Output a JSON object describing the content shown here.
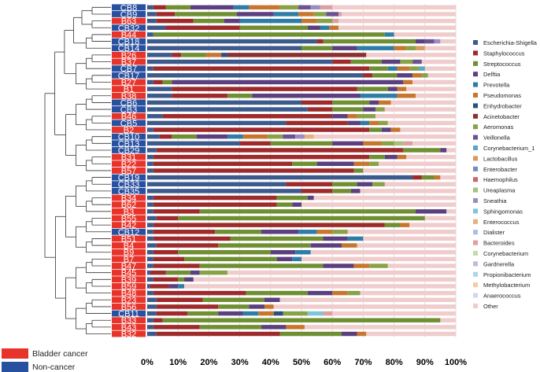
{
  "chart_data": {
    "type": "bar",
    "orientation": "horizontal",
    "stacked": true,
    "xlim": [
      0,
      100
    ],
    "x_ticks": [
      "0%",
      "10%",
      "20%",
      "30%",
      "40%",
      "50%",
      "60%",
      "70%",
      "80%",
      "90%",
      "100%"
    ],
    "grid": true,
    "legend_position": "right",
    "taxa": [
      "Escherichia-Shigella",
      "Staphylococcus",
      "Streptococcus",
      "Delftia",
      "Prevotella",
      "Pseudomonas",
      "Enhydrobacter",
      "Acinetobacter",
      "Aeromonas",
      "Veillonella",
      "Corynebacterium_1",
      "Lactobacillus",
      "Enterobacter",
      "Haemophilus",
      "Ureaplasma",
      "Sneathia",
      "Sphingomonas",
      "Enterococcus",
      "Dialister",
      "Bacteroides",
      "Corynebacterium",
      "Gardnerella",
      "Propionibacterium",
      "Methylobacterium",
      "Anaerococcus",
      "Other"
    ],
    "colors": [
      "#3d5a8c",
      "#9e2a2b",
      "#6f8f32",
      "#5b3f7e",
      "#2e7da6",
      "#c8762d",
      "#2b4f80",
      "#8c2f2f",
      "#88a248",
      "#6a5390",
      "#5aa6c6",
      "#d89a5c",
      "#6f8fc4",
      "#c46a6a",
      "#a7c178",
      "#9f8cbf",
      "#7fc4da",
      "#e5b27f",
      "#a9c0e4",
      "#dba0a0",
      "#c7dba8",
      "#c4b8db",
      "#aad7e6",
      "#f0cfa8",
      "#d0d8ea",
      "#f0cccc"
    ],
    "groups": [
      {
        "name": "Bladder cancer",
        "color": "#e8332a"
      },
      {
        "name": "Non-cancer",
        "color": "#2850a0"
      }
    ],
    "samples": [
      {
        "label": "CB8",
        "group": 1,
        "values": {
          "Escherichia-Shigella": 2,
          "Staphylococcus": 4,
          "Streptococcus": 8,
          "Delftia": 14,
          "Prevotella": 5,
          "Pseudomonas": 10,
          "Aeromonas": 6,
          "Veillonella": 4,
          "Sneathia": 3,
          "Bacteroides": 4,
          "Other": 40
        }
      },
      {
        "label": "CB9",
        "group": 1,
        "values": {
          "Escherichia-Shigella": 3,
          "Staphylococcus": 6,
          "Streptococcus": 20,
          "Delftia": 12,
          "Prevotella": 8,
          "Pseudomonas": 5,
          "Aeromonas": 4,
          "Veillonella": 4,
          "Bacteroides": 1,
          "Other": 37
        }
      },
      {
        "label": "B63",
        "group": 0,
        "values": {
          "Escherichia-Shigella": 3,
          "Staphylococcus": 12,
          "Streptococcus": 10,
          "Delftia": 5,
          "Prevotella": 20,
          "Pseudomonas": 5,
          "Aeromonas": 5,
          "Bacteroides": 2,
          "Other": 38
        }
      },
      {
        "label": "CB32",
        "group": 1,
        "values": {
          "Escherichia-Shigella": 6,
          "Staphylococcus": 24,
          "Streptococcus": 22,
          "Delftia": 4,
          "Prevotella": 3,
          "Pseudomonas": 3,
          "Other": 38
        }
      },
      {
        "label": "B44",
        "group": 0,
        "values": {
          "Escherichia-Shigella": 2,
          "Prevotella": 3,
          "Streptococcus": 75,
          "Other": 20
        }
      },
      {
        "label": "CB18",
        "group": 1,
        "values": {
          "Escherichia-Shigella": 55,
          "Staphylococcus": 2,
          "Streptococcus": 30,
          "Delftia": 3,
          "Veillonella": 3,
          "Sneathia": 2,
          "Other": 5
        }
      },
      {
        "label": "CB14",
        "group": 1,
        "values": {
          "Escherichia-Shigella": 50,
          "Prevotella": 12,
          "Streptococcus": 10,
          "Delftia": 8,
          "Pseudomonas": 4,
          "Lactobacillus": 3,
          "Aeromonas": 3,
          "Other": 10
        }
      },
      {
        "label": "B26",
        "group": 0,
        "values": {
          "Escherichia-Shigella": 8,
          "Staphylococcus": 3,
          "Enhydrobacter": 2,
          "Acinetobacter": 45,
          "Streptococcus": 8,
          "Pseudomonas": 5,
          "Other": 29
        }
      },
      {
        "label": "B37",
        "group": 0,
        "values": {
          "Escherichia-Shigella": 60,
          "Staphylococcus": 6,
          "Streptococcus": 10,
          "Delftia": 6,
          "Aeromonas": 4,
          "Veillonella": 3,
          "Other": 11
        }
      },
      {
        "label": "CB7",
        "group": 1,
        "values": {
          "Escherichia-Shigella": 2,
          "Staphylococcus": 70,
          "Streptococcus": 6,
          "Prevotella": 3,
          "Pseudomonas": 4,
          "Aeromonas": 3,
          "Corynebacterium_1": 2,
          "Other": 10
        }
      },
      {
        "label": "CB17",
        "group": 1,
        "values": {
          "Escherichia-Shigella": 70,
          "Staphylococcus": 3,
          "Streptococcus": 8,
          "Delftia": 5,
          "Pseudomonas": 3,
          "Aeromonas": 2,
          "Other": 9
        }
      },
      {
        "label": "B27",
        "group": 0,
        "values": {
          "Escherichia-Shigella": 2,
          "Staphylococcus": 3,
          "Streptococcus": 3,
          "Delftia": 75,
          "Pseudomonas": 3,
          "Other": 14
        }
      },
      {
        "label": "B1",
        "group": 0,
        "values": {
          "Escherichia-Shigella": 8,
          "Staphylococcus": 60,
          "Streptococcus": 10,
          "Delftia": 3,
          "Pseudomonas": 3,
          "Other": 16
        }
      },
      {
        "label": "B38",
        "group": 0,
        "values": {
          "Escherichia-Shigella": 8,
          "Staphylococcus": 18,
          "Prevotella": 12,
          "Delftia": 35,
          "Streptococcus": 8,
          "Pseudomonas": 6,
          "Other": 13
        }
      },
      {
        "label": "CB6",
        "group": 1,
        "values": {
          "Escherichia-Shigella": 50,
          "Staphylococcus": 10,
          "Streptococcus": 12,
          "Delftia": 3,
          "Pseudomonas": 4,
          "Other": 21
        }
      },
      {
        "label": "CB3",
        "group": 1,
        "values": {
          "Escherichia-Shigella": 52,
          "Staphylococcus": 8,
          "Streptococcus": 10,
          "Delftia": 4,
          "Aeromonas": 3,
          "Other": 23
        }
      },
      {
        "label": "B46",
        "group": 0,
        "values": {
          "Escherichia-Shigella": 5,
          "Staphylococcus": 55,
          "Delftia": 5,
          "Aeromonas": 6,
          "Pseudomonas": 3,
          "Other": 26
        }
      },
      {
        "label": "CB5",
        "group": 1,
        "values": {
          "Escherichia-Shigella": 45,
          "Prevotella": 3,
          "Pseudomonas": 3,
          "Staphylococcus": 20,
          "Delftia": 4,
          "Aeromonas": 3,
          "Other": 22
        }
      },
      {
        "label": "B2",
        "group": 0,
        "values": {
          "Escherichia-Shigella": 2,
          "Staphylococcus": 70,
          "Streptococcus": 4,
          "Delftia": 3,
          "Pseudomonas": 3,
          "Other": 18
        }
      },
      {
        "label": "CB10",
        "group": 1,
        "values": {
          "Escherichia-Shigella": 4,
          "Prevotella": 5,
          "Staphylococcus": 4,
          "Streptococcus": 8,
          "Delftia": 10,
          "Aeromonas": 5,
          "Pseudomonas": 8,
          "Veillonella": 4,
          "Enterococcus": 3,
          "Sneathia": 3,
          "Other": 46
        }
      },
      {
        "label": "CB13",
        "group": 1,
        "values": {
          "Escherichia-Shigella": 30,
          "Staphylococcus": 10,
          "Streptococcus": 20,
          "Delftia": 10,
          "Pseudomonas": 6,
          "Aeromonas": 4,
          "Ureaplasma": 3,
          "Bacteroides": 3,
          "Other": 14
        }
      },
      {
        "label": "CB29",
        "group": 1,
        "values": {
          "Escherichia-Shigella": 3,
          "Staphylococcus": 80,
          "Streptococcus": 12,
          "Delftia": 2,
          "Other": 3
        }
      },
      {
        "label": "B31",
        "group": 0,
        "values": {
          "Escherichia-Shigella": 2,
          "Staphylococcus": 70,
          "Streptococcus": 5,
          "Delftia": 4,
          "Pseudomonas": 3,
          "Other": 16
        }
      },
      {
        "label": "B22",
        "group": 0,
        "values": {
          "Escherichia-Shigella": 2,
          "Staphylococcus": 45,
          "Streptococcus": 8,
          "Delftia": 12,
          "Pseudomonas": 5,
          "Aeromonas": 3,
          "Other": 25
        }
      },
      {
        "label": "B57",
        "group": 0,
        "values": {
          "Escherichia-Shigella": 2,
          "Staphylococcus": 65,
          "Streptococcus": 3,
          "Other": 30
        }
      },
      {
        "label": "CB19",
        "group": 1,
        "values": {
          "Escherichia-Shigella": 86,
          "Staphylococcus": 3,
          "Streptococcus": 4,
          "Pseudomonas": 2,
          "Other": 5
        }
      },
      {
        "label": "CB33",
        "group": 1,
        "values": {
          "Escherichia-Shigella": 45,
          "Staphylococcus": 15,
          "Streptococcus": 8,
          "Delftia": 5,
          "Aeromonas": 4,
          "Other": 23
        }
      },
      {
        "label": "CB35",
        "group": 1,
        "values": {
          "Escherichia-Shigella": 50,
          "Staphylococcus": 10,
          "Streptococcus": 6,
          "Delftia": 3,
          "Other": 31
        }
      },
      {
        "label": "B34",
        "group": 0,
        "values": {
          "Escherichia-Shigella": 2,
          "Staphylococcus": 40,
          "Streptococcus": 10,
          "Delftia": 2,
          "Other": 46
        }
      },
      {
        "label": "B62",
        "group": 0,
        "values": {
          "Escherichia-Shigella": 2,
          "Staphylococcus": 40,
          "Streptococcus": 5,
          "Delftia": 3,
          "Other": 50
        }
      },
      {
        "label": "B3",
        "group": 0,
        "values": {
          "Escherichia-Shigella": 2,
          "Staphylococcus": 15,
          "Streptococcus": 70,
          "Delftia": 10,
          "Other": 3
        }
      },
      {
        "label": "B55",
        "group": 0,
        "values": {
          "Escherichia-Shigella": 3,
          "Staphylococcus": 7,
          "Streptococcus": 80,
          "Other": 10
        }
      },
      {
        "label": "B42",
        "group": 0,
        "values": {
          "Escherichia-Shigella": 2,
          "Staphylococcus": 75,
          "Pseudomonas": 3,
          "Streptococcus": 5,
          "Other": 15
        }
      },
      {
        "label": "CB12",
        "group": 1,
        "values": {
          "Escherichia-Shigella": 2,
          "Staphylococcus": 20,
          "Streptococcus": 15,
          "Delftia": 12,
          "Prevotella": 6,
          "Aeromonas": 5,
          "Pseudomonas": 5,
          "Other": 35
        }
      },
      {
        "label": "B51",
        "group": 0,
        "values": {
          "Escherichia-Shigella": 2,
          "Staphylococcus": 25,
          "Streptococcus": 30,
          "Delftia": 8,
          "Prevotella": 5,
          "Other": 30
        }
      },
      {
        "label": "B4",
        "group": 0,
        "values": {
          "Escherichia-Shigella": 3,
          "Staphylococcus": 20,
          "Streptococcus": 30,
          "Delftia": 10,
          "Pseudomonas": 5,
          "Other": 32
        }
      },
      {
        "label": "B9",
        "group": 0,
        "values": {
          "Escherichia-Shigella": 2,
          "Staphylococcus": 8,
          "Streptococcus": 30,
          "Delftia": 8,
          "Prevotella": 5,
          "Other": 47
        }
      },
      {
        "label": "B7",
        "group": 0,
        "values": {
          "Escherichia-Shigella": 2,
          "Staphylococcus": 10,
          "Streptococcus": 30,
          "Delftia": 5,
          "Prevotella": 3,
          "Other": 50
        }
      },
      {
        "label": "B47",
        "group": 0,
        "values": {
          "Escherichia-Shigella": 2,
          "Staphylococcus": 15,
          "Streptococcus": 40,
          "Delftia": 10,
          "Pseudomonas": 5,
          "Aeromonas": 6,
          "Other": 22
        }
      },
      {
        "label": "B45",
        "group": 0,
        "values": {
          "Escherichia-Shigella": 1,
          "Staphylococcus": 5,
          "Streptococcus": 8,
          "Delftia": 3,
          "Aeromonas": 9,
          "Other": 74
        }
      },
      {
        "label": "B39",
        "group": 0,
        "values": {
          "Escherichia-Shigella": 2,
          "Staphylococcus": 8,
          "Streptococcus": 2,
          "Delftia": 3,
          "Other": 85
        }
      },
      {
        "label": "B59",
        "group": 0,
        "values": {
          "Escherichia-Shigella": 1,
          "Staphylococcus": 6,
          "Delftia": 3,
          "Prevotella": 2,
          "Other": 88
        }
      },
      {
        "label": "B48",
        "group": 0,
        "values": {
          "Escherichia-Shigella": 2,
          "Staphylococcus": 30,
          "Streptococcus": 20,
          "Delftia": 8,
          "Pseudomonas": 5,
          "Aeromonas": 4,
          "Other": 31
        }
      },
      {
        "label": "B23",
        "group": 0,
        "values": {
          "Escherichia-Shigella": 3,
          "Staphylococcus": 15,
          "Streptococcus": 20,
          "Delftia": 5,
          "Other": 57
        }
      },
      {
        "label": "B56",
        "group": 0,
        "values": {
          "Escherichia-Shigella": 3,
          "Staphylococcus": 20,
          "Streptococcus": 10,
          "Delftia": 5,
          "Pseudomonas": 3,
          "Other": 59
        }
      },
      {
        "label": "CB11",
        "group": 1,
        "values": {
          "Escherichia-Shigella": 3,
          "Prevotella": 5,
          "Staphylococcus": 10,
          "Streptococcus": 10,
          "Delftia": 8,
          "Aeromonas": 8,
          "Pseudomonas": 5,
          "Enhydrobacter": 3,
          "Sphingomonas": 5,
          "Bacteroides": 3,
          "Other": 40
        }
      },
      {
        "label": "B33",
        "group": 0,
        "values": {
          "Escherichia-Shigella": 2,
          "Staphylococcus": 3,
          "Streptococcus": 90,
          "Other": 5
        }
      },
      {
        "label": "B43",
        "group": 0,
        "values": {
          "Escherichia-Shigella": 2,
          "Staphylococcus": 15,
          "Streptococcus": 20,
          "Delftia": 8,
          "Pseudomonas": 6,
          "Other": 49
        }
      },
      {
        "label": "B32",
        "group": 0,
        "values": {
          "Escherichia-Shigella": 3,
          "Staphylococcus": 40,
          "Streptococcus": 20,
          "Delftia": 5,
          "Pseudomonas": 3,
          "Other": 29
        }
      }
    ]
  }
}
